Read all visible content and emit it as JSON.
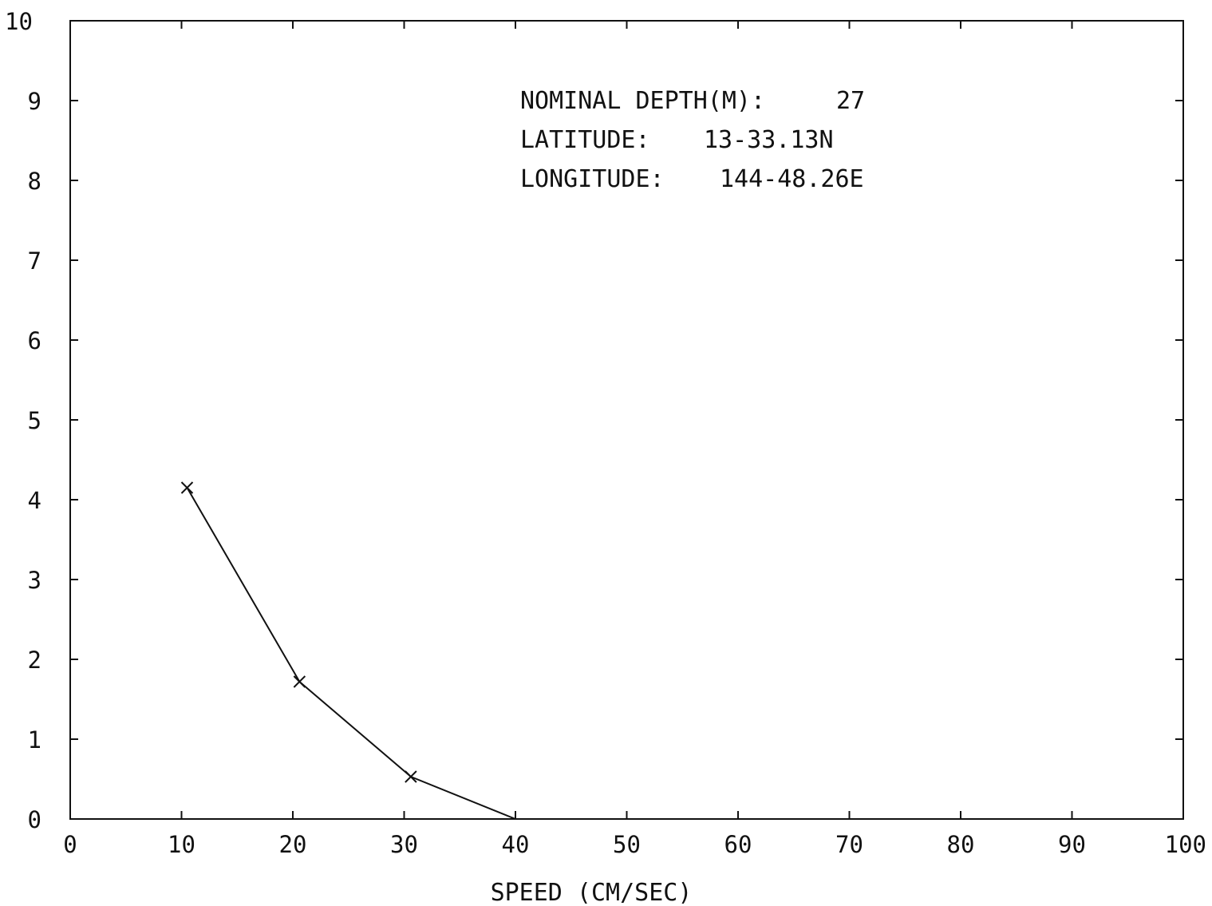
{
  "chart_data": {
    "type": "line",
    "title": "",
    "xlabel": "SPEED (CM/SEC)",
    "ylabel": "",
    "xlim": [
      0,
      100
    ],
    "ylim": [
      0,
      10
    ],
    "x_ticks": [
      "0",
      "10",
      "20",
      "30",
      "40",
      "50",
      "60",
      "70",
      "80",
      "90",
      "100"
    ],
    "y_ticks": [
      "0",
      "1",
      "2",
      "3",
      "4",
      "5",
      "6",
      "7",
      "8",
      "9",
      "10"
    ],
    "grid": false,
    "series": [
      {
        "x": [
          10.5,
          20.6,
          30.6,
          40
        ],
        "y": [
          4.15,
          1.72,
          0.53,
          0
        ],
        "markers": [
          true,
          true,
          true,
          false
        ]
      }
    ],
    "annotations": [
      {
        "label": "NOMINAL DEPTH(M):",
        "value": "27"
      },
      {
        "label": "LATITUDE:",
        "value": "13-33.13N"
      },
      {
        "label": "LONGITUDE:",
        "value": "144-48.26E"
      }
    ],
    "colors": {
      "line": "#111111",
      "background": "#ffffff"
    }
  }
}
